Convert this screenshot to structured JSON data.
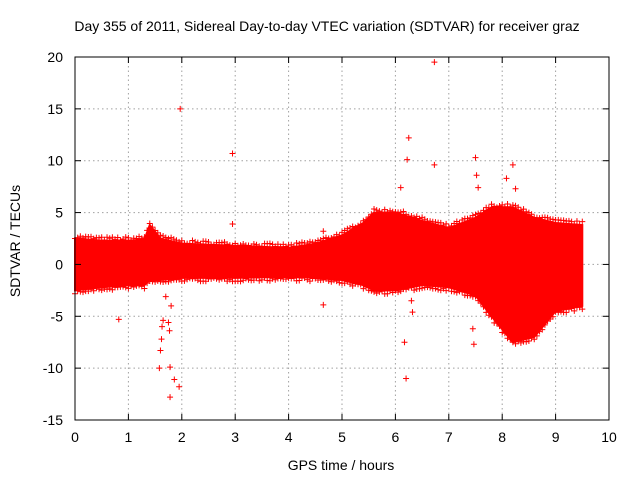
{
  "chart_data": {
    "type": "scatter",
    "title": "Day 355 of 2011, Sidereal Day-to-day VTEC variation (SDTVAR) for receiver graz",
    "xlabel": "GPS time / hours",
    "ylabel": "SDTVAR / TECUs",
    "xlim": [
      0,
      10
    ],
    "ylim": [
      -15,
      20
    ],
    "grid": true,
    "x_ticks": [
      0,
      1,
      2,
      3,
      4,
      5,
      6,
      7,
      8,
      9,
      10
    ],
    "y_ticks": [
      -15,
      -10,
      -5,
      0,
      5,
      10,
      15,
      20
    ],
    "x_tick_labels": [
      "0",
      "1",
      "2",
      "3",
      "4",
      "5",
      "6",
      "7",
      "8",
      "9",
      "10"
    ],
    "y_tick_labels": [
      "-15",
      "-10",
      "-5",
      "0",
      "5",
      "10",
      "15",
      "20"
    ],
    "marker": "+",
    "color": "#ff0000",
    "band": [
      {
        "x": 0.0,
        "lo": -2.5,
        "hi": 2.5
      },
      {
        "x": 0.5,
        "lo": -2.2,
        "hi": 2.3
      },
      {
        "x": 1.0,
        "lo": -2.0,
        "hi": 2.3
      },
      {
        "x": 1.3,
        "lo": -2.0,
        "hi": 2.4
      },
      {
        "x": 1.4,
        "lo": -1.5,
        "hi": 3.8
      },
      {
        "x": 1.6,
        "lo": -1.5,
        "hi": 2.5
      },
      {
        "x": 2.0,
        "lo": -1.3,
        "hi": 2.0
      },
      {
        "x": 3.0,
        "lo": -1.3,
        "hi": 1.8
      },
      {
        "x": 4.0,
        "lo": -1.2,
        "hi": 1.6
      },
      {
        "x": 4.5,
        "lo": -1.3,
        "hi": 2.0
      },
      {
        "x": 5.0,
        "lo": -1.5,
        "hi": 2.8
      },
      {
        "x": 5.4,
        "lo": -2.0,
        "hi": 4.0
      },
      {
        "x": 5.6,
        "lo": -2.5,
        "hi": 5.0
      },
      {
        "x": 6.0,
        "lo": -2.5,
        "hi": 5.0
      },
      {
        "x": 6.5,
        "lo": -2.0,
        "hi": 4.2
      },
      {
        "x": 7.0,
        "lo": -2.2,
        "hi": 3.5
      },
      {
        "x": 7.5,
        "lo": -3.0,
        "hi": 4.5
      },
      {
        "x": 7.8,
        "lo": -5.0,
        "hi": 5.5
      },
      {
        "x": 8.2,
        "lo": -7.5,
        "hi": 5.5
      },
      {
        "x": 8.6,
        "lo": -7.0,
        "hi": 4.5
      },
      {
        "x": 9.0,
        "lo": -4.5,
        "hi": 4.0
      },
      {
        "x": 9.5,
        "lo": -4.0,
        "hi": 3.8
      }
    ],
    "outliers": [
      {
        "x": 0.82,
        "y": -5.3
      },
      {
        "x": 1.58,
        "y": -10.0
      },
      {
        "x": 1.6,
        "y": -8.3
      },
      {
        "x": 1.62,
        "y": -7.2
      },
      {
        "x": 1.63,
        "y": -6.0
      },
      {
        "x": 1.65,
        "y": -5.4
      },
      {
        "x": 1.7,
        "y": -3.1
      },
      {
        "x": 1.75,
        "y": -5.6
      },
      {
        "x": 1.77,
        "y": -6.4
      },
      {
        "x": 1.78,
        "y": -9.9
      },
      {
        "x": 1.78,
        "y": -12.8
      },
      {
        "x": 1.8,
        "y": -4.0
      },
      {
        "x": 1.86,
        "y": -11.1
      },
      {
        "x": 1.95,
        "y": -11.8
      },
      {
        "x": 1.97,
        "y": 15.0
      },
      {
        "x": 2.95,
        "y": 10.7
      },
      {
        "x": 2.95,
        "y": 3.9
      },
      {
        "x": 4.65,
        "y": 3.2
      },
      {
        "x": 4.65,
        "y": -3.9
      },
      {
        "x": 6.1,
        "y": 7.4
      },
      {
        "x": 6.17,
        "y": -7.5
      },
      {
        "x": 6.2,
        "y": -11.0
      },
      {
        "x": 6.22,
        "y": 10.1
      },
      {
        "x": 6.25,
        "y": 12.2
      },
      {
        "x": 6.3,
        "y": -3.5
      },
      {
        "x": 6.32,
        "y": -4.6
      },
      {
        "x": 6.73,
        "y": 19.5
      },
      {
        "x": 6.73,
        "y": 9.6
      },
      {
        "x": 7.45,
        "y": -6.2
      },
      {
        "x": 7.47,
        "y": -7.7
      },
      {
        "x": 7.5,
        "y": 10.3
      },
      {
        "x": 7.52,
        "y": 8.6
      },
      {
        "x": 7.55,
        "y": 7.4
      },
      {
        "x": 8.08,
        "y": 8.3
      },
      {
        "x": 8.2,
        "y": 9.6
      },
      {
        "x": 8.25,
        "y": 7.3
      }
    ]
  }
}
